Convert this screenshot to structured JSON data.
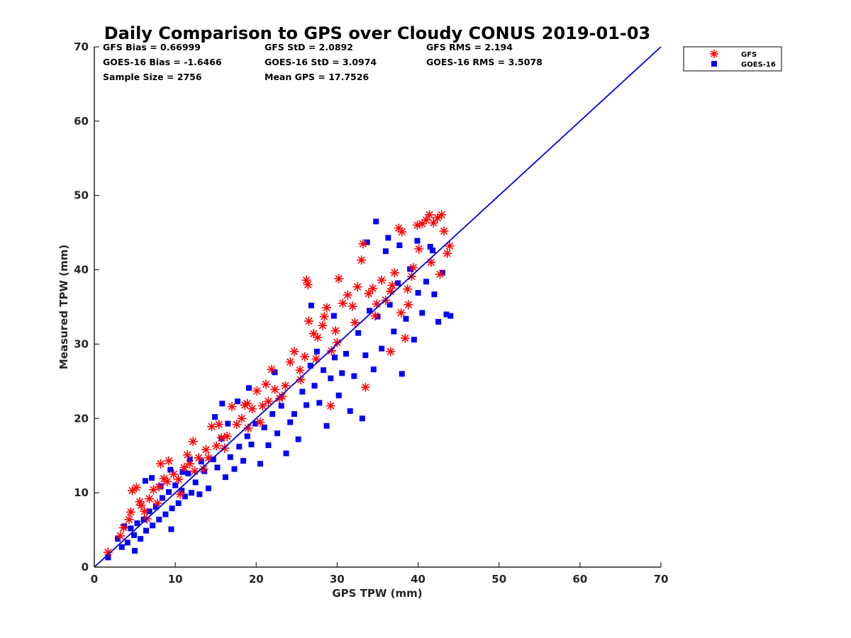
{
  "chart_data": {
    "type": "scatter",
    "title": "Daily Comparison to GPS over Cloudy CONUS 2019-01-03",
    "xlabel": "GPS TPW (mm)",
    "ylabel": "Measured TPW (mm)",
    "xlim": [
      0,
      70
    ],
    "ylim": [
      0,
      70
    ],
    "xticks": [
      0,
      10,
      20,
      30,
      40,
      50,
      60,
      70
    ],
    "yticks": [
      0,
      10,
      20,
      30,
      40,
      50,
      60,
      70
    ],
    "legend_placement": "outside top-right",
    "grid": false,
    "stats": [
      [
        "GFS Bias = 0.66999",
        "GFS StD = 2.0892",
        "GFS RMS = 2.194"
      ],
      [
        "GOES-16 Bias = -1.6466",
        "GOES-16 StD = 3.0974",
        "GOES-16 RMS = 3.5078"
      ],
      [
        "Sample Size = 2756",
        "Mean GPS = 17.7526",
        ""
      ]
    ],
    "reference_line": {
      "x": [
        0,
        70
      ],
      "y": [
        0,
        70
      ],
      "color": "#0000dd"
    },
    "series": [
      {
        "name": "GFS",
        "marker": "asterisk",
        "color": "#ff0000",
        "points": [
          [
            1.7,
            2.0
          ],
          [
            3.2,
            4.2
          ],
          [
            3.6,
            5.3
          ],
          [
            4.3,
            6.4
          ],
          [
            4.5,
            7.4
          ],
          [
            4.7,
            10.3
          ],
          [
            5.2,
            10.7
          ],
          [
            5.6,
            8.8
          ],
          [
            6.2,
            7.5
          ],
          [
            6.8,
            9.2
          ],
          [
            7.3,
            10.4
          ],
          [
            8.0,
            10.8
          ],
          [
            8.6,
            11.9
          ],
          [
            9.2,
            14.3
          ],
          [
            9.8,
            12.5
          ],
          [
            10.4,
            11.8
          ],
          [
            11.1,
            13.4
          ],
          [
            11.8,
            13.9
          ],
          [
            12.2,
            16.9
          ],
          [
            12.9,
            14.7
          ],
          [
            13.5,
            13.2
          ],
          [
            14.1,
            14.7
          ],
          [
            14.5,
            18.9
          ],
          [
            15.1,
            16.3
          ],
          [
            15.7,
            17.4
          ],
          [
            16.4,
            17.6
          ],
          [
            17.0,
            21.6
          ],
          [
            17.6,
            19.2
          ],
          [
            18.2,
            20.0
          ],
          [
            18.9,
            22.0
          ],
          [
            19.5,
            21.3
          ],
          [
            20.1,
            23.7
          ],
          [
            20.8,
            21.7
          ],
          [
            21.2,
            24.6
          ],
          [
            21.9,
            26.6
          ],
          [
            22.3,
            23.9
          ],
          [
            22.9,
            22.7
          ],
          [
            23.6,
            24.4
          ],
          [
            24.2,
            27.6
          ],
          [
            24.7,
            29.0
          ],
          [
            25.4,
            26.5
          ],
          [
            26.0,
            28.3
          ],
          [
            26.5,
            33.1
          ],
          [
            27.1,
            31.4
          ],
          [
            27.6,
            30.9
          ],
          [
            28.2,
            32.5
          ],
          [
            28.7,
            34.9
          ],
          [
            29.3,
            29.1
          ],
          [
            29.8,
            31.8
          ],
          [
            30.2,
            38.8
          ],
          [
            30.7,
            35.5
          ],
          [
            31.3,
            36.6
          ],
          [
            31.9,
            35.1
          ],
          [
            32.5,
            37.7
          ],
          [
            33.0,
            41.3
          ],
          [
            33.2,
            43.5
          ],
          [
            33.5,
            24.2
          ],
          [
            33.9,
            36.8
          ],
          [
            34.4,
            37.5
          ],
          [
            34.9,
            35.4
          ],
          [
            35.5,
            38.6
          ],
          [
            36.0,
            35.9
          ],
          [
            36.6,
            37.1
          ],
          [
            37.1,
            39.6
          ],
          [
            37.6,
            45.6
          ],
          [
            38.0,
            45.1
          ],
          [
            38.4,
            30.8
          ],
          [
            38.7,
            37.4
          ],
          [
            39.4,
            40.3
          ],
          [
            39.9,
            46.0
          ],
          [
            40.5,
            46.2
          ],
          [
            41.0,
            46.7
          ],
          [
            41.4,
            47.4
          ],
          [
            41.9,
            46.3
          ],
          [
            42.4,
            47.0
          ],
          [
            42.9,
            47.4
          ],
          [
            43.2,
            45.2
          ],
          [
            43.6,
            42.2
          ],
          [
            43.9,
            43.2
          ],
          [
            26.2,
            38.6
          ],
          [
            26.4,
            38.0
          ],
          [
            28.4,
            33.7
          ],
          [
            29.2,
            21.7
          ],
          [
            36.6,
            29.0
          ],
          [
            37.9,
            34.2
          ],
          [
            38.8,
            35.3
          ],
          [
            40.1,
            42.8
          ],
          [
            41.6,
            41.0
          ],
          [
            42.7,
            39.4
          ],
          [
            6.5,
            6.5
          ],
          [
            7.8,
            8.6
          ],
          [
            10.6,
            9.8
          ],
          [
            12.4,
            12.9
          ],
          [
            13.8,
            15.8
          ],
          [
            16.1,
            16.0
          ],
          [
            19.0,
            18.7
          ],
          [
            21.5,
            22.3
          ],
          [
            23.2,
            23.0
          ],
          [
            25.5,
            25.2
          ],
          [
            27.4,
            28.0
          ],
          [
            30.0,
            30.2
          ],
          [
            32.2,
            32.9
          ],
          [
            34.7,
            33.8
          ],
          [
            36.8,
            37.9
          ],
          [
            39.2,
            39.1
          ],
          [
            20.5,
            19.5
          ],
          [
            18.6,
            21.8
          ],
          [
            15.4,
            19.2
          ],
          [
            11.5,
            15.1
          ],
          [
            9.0,
            11.5
          ],
          [
            8.2,
            13.9
          ],
          [
            5.8,
            8.3
          ]
        ]
      },
      {
        "name": "GOES-16",
        "marker": "square",
        "color": "#0000ff",
        "points": [
          [
            1.7,
            1.3
          ],
          [
            2.9,
            3.8
          ],
          [
            3.4,
            2.7
          ],
          [
            3.7,
            5.5
          ],
          [
            4.1,
            3.3
          ],
          [
            4.5,
            5.2
          ],
          [
            4.9,
            4.3
          ],
          [
            5.3,
            5.9
          ],
          [
            5.7,
            3.8
          ],
          [
            6.1,
            6.4
          ],
          [
            6.4,
            4.9
          ],
          [
            6.8,
            7.5
          ],
          [
            7.2,
            5.6
          ],
          [
            7.6,
            8.1
          ],
          [
            8.0,
            6.4
          ],
          [
            8.4,
            9.3
          ],
          [
            8.8,
            7.1
          ],
          [
            9.2,
            10.1
          ],
          [
            9.6,
            7.9
          ],
          [
            10.0,
            11.0
          ],
          [
            10.4,
            8.6
          ],
          [
            10.8,
            10.3
          ],
          [
            11.2,
            9.5
          ],
          [
            11.6,
            12.6
          ],
          [
            12.0,
            10.0
          ],
          [
            12.5,
            11.4
          ],
          [
            13.0,
            9.8
          ],
          [
            13.6,
            12.9
          ],
          [
            14.1,
            10.6
          ],
          [
            14.7,
            14.5
          ],
          [
            15.2,
            13.4
          ],
          [
            15.7,
            17.3
          ],
          [
            16.2,
            12.1
          ],
          [
            16.8,
            14.8
          ],
          [
            17.3,
            13.2
          ],
          [
            17.9,
            16.2
          ],
          [
            18.4,
            14.3
          ],
          [
            18.9,
            17.6
          ],
          [
            19.4,
            16.5
          ],
          [
            19.9,
            19.3
          ],
          [
            20.5,
            13.9
          ],
          [
            21.0,
            18.8
          ],
          [
            21.5,
            16.4
          ],
          [
            22.0,
            20.6
          ],
          [
            22.6,
            18.0
          ],
          [
            23.1,
            21.7
          ],
          [
            23.7,
            15.3
          ],
          [
            24.2,
            19.5
          ],
          [
            24.7,
            20.6
          ],
          [
            25.2,
            17.2
          ],
          [
            25.7,
            23.6
          ],
          [
            26.2,
            21.8
          ],
          [
            26.7,
            27.1
          ],
          [
            27.2,
            24.4
          ],
          [
            27.8,
            22.1
          ],
          [
            28.3,
            26.5
          ],
          [
            28.7,
            19.0
          ],
          [
            29.2,
            25.4
          ],
          [
            29.7,
            28.2
          ],
          [
            30.2,
            23.1
          ],
          [
            30.6,
            26.1
          ],
          [
            31.1,
            28.7
          ],
          [
            31.6,
            21.0
          ],
          [
            32.1,
            25.7
          ],
          [
            32.6,
            31.5
          ],
          [
            33.1,
            20.0
          ],
          [
            33.5,
            28.5
          ],
          [
            34.0,
            34.5
          ],
          [
            34.5,
            26.6
          ],
          [
            35.0,
            33.7
          ],
          [
            35.5,
            29.4
          ],
          [
            36.0,
            42.5
          ],
          [
            36.5,
            35.3
          ],
          [
            37.0,
            31.7
          ],
          [
            37.5,
            38.2
          ],
          [
            38.0,
            26.0
          ],
          [
            38.5,
            33.4
          ],
          [
            39.0,
            40.1
          ],
          [
            39.5,
            30.6
          ],
          [
            40.0,
            36.9
          ],
          [
            40.5,
            34.2
          ],
          [
            41.0,
            38.4
          ],
          [
            41.5,
            43.1
          ],
          [
            42.0,
            36.7
          ],
          [
            42.5,
            33.0
          ],
          [
            43.0,
            39.6
          ],
          [
            43.5,
            34.0
          ],
          [
            44.0,
            33.8
          ],
          [
            6.3,
            11.6
          ],
          [
            7.1,
            12.0
          ],
          [
            8.2,
            10.9
          ],
          [
            9.4,
            13.1
          ],
          [
            10.9,
            12.8
          ],
          [
            11.8,
            14.5
          ],
          [
            13.2,
            14.2
          ],
          [
            14.9,
            20.2
          ],
          [
            15.8,
            22.0
          ],
          [
            16.5,
            19.3
          ],
          [
            17.7,
            22.3
          ],
          [
            19.1,
            24.1
          ],
          [
            22.3,
            26.2
          ],
          [
            27.5,
            29.0
          ],
          [
            33.7,
            43.7
          ],
          [
            34.8,
            46.5
          ],
          [
            36.3,
            44.3
          ],
          [
            37.7,
            43.3
          ],
          [
            39.9,
            43.9
          ],
          [
            41.8,
            42.6
          ],
          [
            26.8,
            35.2
          ],
          [
            29.6,
            33.8
          ],
          [
            5.0,
            2.2
          ],
          [
            9.5,
            5.1
          ]
        ]
      }
    ]
  },
  "legend": [
    {
      "label": "GFS",
      "marker": "asterisk",
      "color": "#ff0000"
    },
    {
      "label": "GOES-16",
      "marker": "square",
      "color": "#0000ff"
    }
  ]
}
